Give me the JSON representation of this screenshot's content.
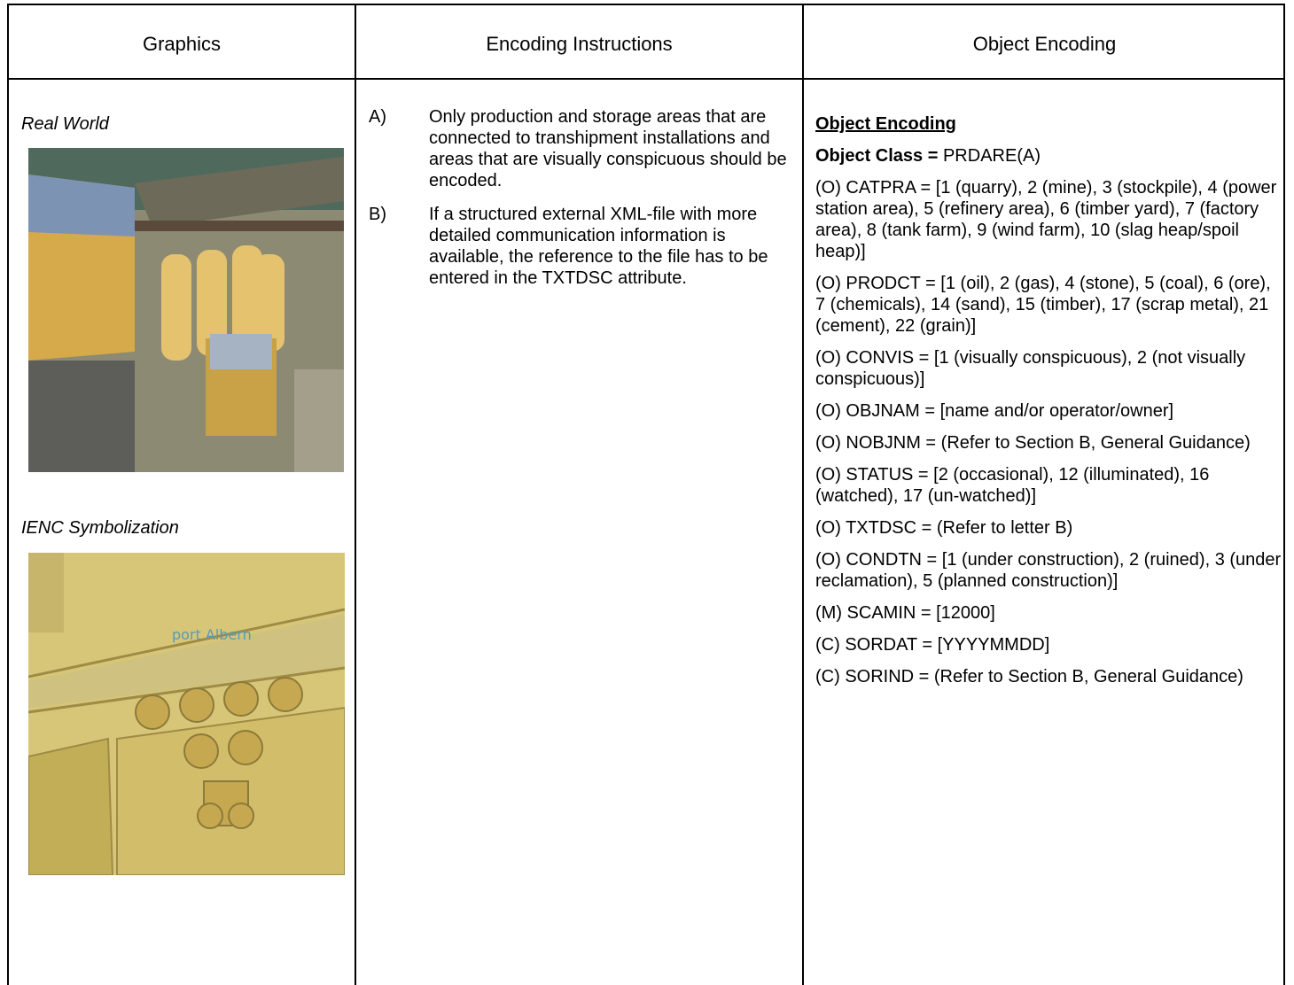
{
  "header": {
    "graphics": "Graphics",
    "instructions": "Encoding Instructions",
    "object_encoding": "Object Encoding"
  },
  "graphics": {
    "real_world_label": "Real World",
    "symbolization_label": "IENC Symbolization",
    "map_label": "port Albern"
  },
  "instructions": [
    {
      "letter": "A)",
      "text": "Only production and storage areas that are connected to transhipment installations and areas that are visually conspicuous should be encoded."
    },
    {
      "letter": "B)",
      "text": "If a structured external XML-file with more detailed communication information is available, the reference to the file has to be entered in the TXTDSC attribute."
    }
  ],
  "object_encoding": {
    "heading": "Object Encoding",
    "class_label": "Object Class =",
    "class_value": "PRDARE(A)",
    "attributes": [
      "(O) CATPRA = [1 (quarry), 2 (mine), 3 (stockpile), 4 (power station area), 5 (refinery area), 6 (timber yard), 7 (factory area), 8 (tank farm), 9 (wind farm), 10 (slag heap/spoil heap)]",
      "(O) PRODCT = [1 (oil), 2 (gas), 4 (stone), 5 (coal), 6 (ore), 7 (chemicals), 14 (sand), 15 (timber), 17 (scrap metal), 21 (cement), 22 (grain)]",
      "(O) CONVIS = [1 (visually conspicuous), 2 (not visually conspicuous)]",
      "(O) OBJNAM = [name and/or operator/owner]",
      "(O) NOBJNM = (Refer to Section B, General Guidance)",
      "(O) STATUS = [2 (occasional), 12 (illuminated), 16 (watched), 17 (un-watched)]",
      "(O) TXTDSC = (Refer to letter B)",
      "(O) CONDTN = [1 (under construction), 2 (ruined), 3 (under reclamation), 5 (planned construction)]",
      "(M) SCAMIN = [12000]",
      "(C) SORDAT = [YYYYMMDD]",
      "(C) SORIND = (Refer to Section B, General Guidance)"
    ]
  }
}
